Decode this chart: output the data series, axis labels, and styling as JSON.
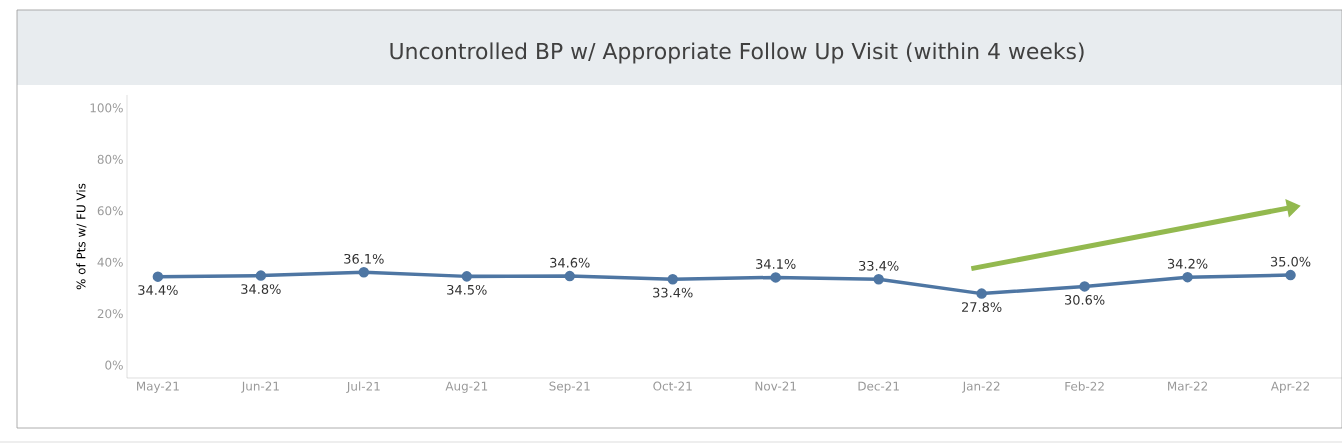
{
  "chart_data": {
    "type": "line",
    "title": "Uncontrolled BP w/ Appropriate Follow Up Visit (within 4 weeks)",
    "ylabel": "% of Pts w/ FU Vis",
    "categories": [
      "May-21",
      "Jun-21",
      "Jul-21",
      "Aug-21",
      "Sep-21",
      "Oct-21",
      "Nov-21",
      "Dec-21",
      "Jan-22",
      "Feb-22",
      "Mar-22",
      "Apr-22"
    ],
    "series": [
      {
        "color": "#4e76a3",
        "values": [
          34.4,
          34.8,
          36.1,
          34.5,
          34.6,
          33.4,
          34.1,
          33.4,
          27.8,
          30.6,
          34.2,
          35.0
        ],
        "value_labels": [
          "34.4%",
          "34.8%",
          "36.1%",
          "34.5%",
          "34.6%",
          "33.4%",
          "34.1%",
          "33.4%",
          "27.8%",
          "30.6%",
          "34.2%",
          "35.0%"
        ]
      }
    ],
    "ylim": [
      -5,
      105
    ],
    "yticks": [
      {
        "value": 0,
        "label": "0%"
      },
      {
        "value": 20,
        "label": "20%"
      },
      {
        "value": 40,
        "label": "40%"
      },
      {
        "value": 60,
        "label": "60%"
      },
      {
        "value": 80,
        "label": "80%"
      },
      {
        "value": 100,
        "label": "100%"
      }
    ],
    "marker": "circle",
    "line_style": "solid",
    "grid": false
  }
}
